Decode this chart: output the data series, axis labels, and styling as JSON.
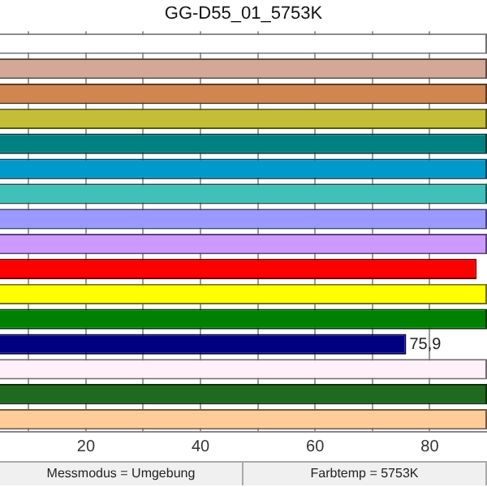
{
  "chart_data": {
    "type": "bar",
    "orientation": "horizontal",
    "title": "GG-D55_01_5753K",
    "categories": [
      null,
      null,
      null,
      null,
      null,
      null,
      null,
      null,
      null,
      null,
      null,
      null,
      null,
      null,
      null,
      null
    ],
    "values": [
      90,
      90,
      90,
      90,
      90,
      90,
      90,
      90,
      90,
      88.2,
      90,
      90,
      75.9,
      90,
      90,
      90
    ],
    "colors": [
      "#ffffff",
      "#d4a896",
      "#cf8650",
      "#c4bd36",
      "#008080",
      "#0099cc",
      "#40c0b8",
      "#9999ff",
      "#cc99ff",
      "#ff0000",
      "#ffff00",
      "#008000",
      "#000080",
      "#fff0fa",
      "#1f6a1f",
      "#ffcc99"
    ],
    "value_labels": [
      null,
      null,
      null,
      null,
      null,
      null,
      null,
      null,
      null,
      null,
      null,
      null,
      "75,9",
      null,
      null,
      null
    ],
    "xlim": [
      5,
      90
    ],
    "xticks": [
      {
        "value": 10,
        "label": null
      },
      20,
      {
        "value": 30,
        "label": null
      },
      40,
      {
        "value": 50,
        "label": null
      },
      60,
      {
        "value": 70,
        "label": null
      },
      80
    ],
    "grid": "x",
    "tick_labels": "x",
    "annotations": [
      "Messmodus = Umgebung",
      "Farbtemp = 5753K"
    ]
  }
}
